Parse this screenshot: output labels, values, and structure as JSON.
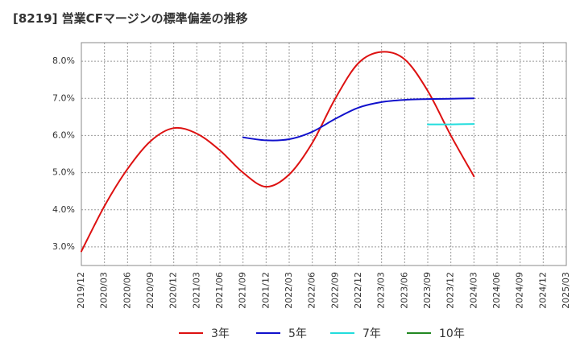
{
  "chart_data": {
    "type": "line",
    "title": "[8219]  営業CFマージンの標準偏差の推移",
    "x_ticks": [
      "2019/12",
      "2020/03",
      "2020/06",
      "2020/09",
      "2020/12",
      "2021/03",
      "2021/06",
      "2021/09",
      "2021/12",
      "2022/03",
      "2022/06",
      "2022/09",
      "2022/12",
      "2023/03",
      "2023/06",
      "2023/09",
      "2023/12",
      "2024/03",
      "2024/06",
      "2024/09",
      "2024/12",
      "2025/03"
    ],
    "y_ticks": [
      "3.0%",
      "4.0%",
      "5.0%",
      "6.0%",
      "7.0%",
      "8.0%"
    ],
    "ylim": [
      2.5,
      8.5
    ],
    "grid": true,
    "legend_position": "bottom",
    "series": [
      {
        "name": "3年",
        "color": "#dd1111",
        "points": [
          [
            "2019/12",
            2.88
          ],
          [
            "2020/03",
            4.1
          ],
          [
            "2020/06",
            5.1
          ],
          [
            "2020/09",
            5.85
          ],
          [
            "2020/12",
            6.2
          ],
          [
            "2021/03",
            6.05
          ],
          [
            "2021/06",
            5.6
          ],
          [
            "2021/09",
            5.0
          ],
          [
            "2021/12",
            4.62
          ],
          [
            "2022/03",
            4.95
          ],
          [
            "2022/06",
            5.8
          ],
          [
            "2022/09",
            7.0
          ],
          [
            "2022/12",
            7.95
          ],
          [
            "2023/03",
            8.25
          ],
          [
            "2023/06",
            8.05
          ],
          [
            "2023/09",
            7.2
          ],
          [
            "2023/12",
            6.0
          ],
          [
            "2024/03",
            4.9
          ]
        ]
      },
      {
        "name": "5年",
        "color": "#1111cc",
        "points": [
          [
            "2021/09",
            5.95
          ],
          [
            "2021/12",
            5.87
          ],
          [
            "2022/03",
            5.9
          ],
          [
            "2022/06",
            6.1
          ],
          [
            "2022/09",
            6.45
          ],
          [
            "2022/12",
            6.75
          ],
          [
            "2023/03",
            6.9
          ],
          [
            "2023/06",
            6.96
          ],
          [
            "2023/09",
            6.98
          ],
          [
            "2023/12",
            6.99
          ],
          [
            "2024/03",
            7.0
          ]
        ]
      },
      {
        "name": "7年",
        "color": "#22dddd",
        "points": [
          [
            "2023/09",
            6.3
          ],
          [
            "2023/12",
            6.3
          ],
          [
            "2024/03",
            6.31
          ]
        ]
      },
      {
        "name": "10年",
        "color": "#228822",
        "points": []
      }
    ]
  }
}
